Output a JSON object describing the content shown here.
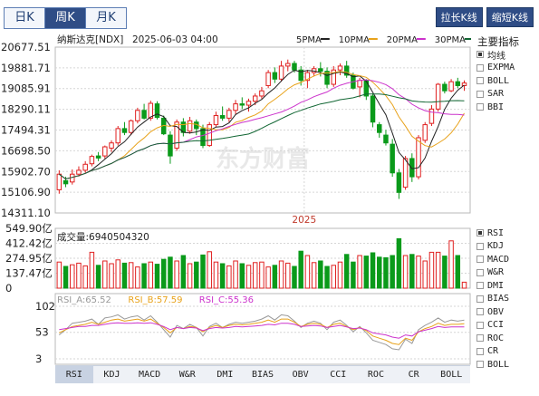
{
  "period_tabs": [
    {
      "label": "日K",
      "active": false
    },
    {
      "label": "周K",
      "active": true
    },
    {
      "label": "月K",
      "active": false
    }
  ],
  "buttons": {
    "stretch": "拉长K线",
    "shorten": "缩短K线"
  },
  "header": {
    "name": "纳斯达克[NDX]",
    "datetime": "2025-06-03 04:00"
  },
  "ma_legend": [
    {
      "label": "5PMA",
      "color": "#222222"
    },
    {
      "label": "10PMA",
      "color": "#e8a21a"
    },
    {
      "label": "20PMA",
      "color": "#cc33cc"
    },
    {
      "label": "30PMA",
      "color": "#116633"
    }
  ],
  "indicator_panel": {
    "title": "主要指标",
    "items": [
      {
        "label": "均线",
        "checked": true
      },
      {
        "label": "EXPMA",
        "checked": false
      },
      {
        "label": "BOLL",
        "checked": false
      },
      {
        "label": "SAR",
        "checked": false
      },
      {
        "label": "BBI",
        "checked": false
      }
    ]
  },
  "sub_panel": {
    "items": [
      {
        "label": "RSI",
        "checked": true
      },
      {
        "label": "KDJ",
        "checked": false
      },
      {
        "label": "MACD",
        "checked": false
      },
      {
        "label": "W&R",
        "checked": false
      },
      {
        "label": "DMI",
        "checked": false
      },
      {
        "label": "BIAS",
        "checked": false
      },
      {
        "label": "OBV",
        "checked": false
      },
      {
        "label": "CCI",
        "checked": false
      },
      {
        "label": "ROC",
        "checked": false
      },
      {
        "label": "CR",
        "checked": false
      },
      {
        "label": "BOLL",
        "checked": false
      }
    ]
  },
  "bottom_tabs": [
    "RSI",
    "KDJ",
    "MACD",
    "W&R",
    "DMI",
    "BIAS",
    "OBV",
    "CCI",
    "ROC",
    "CR",
    "BOLL"
  ],
  "bottom_tab_active": "RSI",
  "watermark": "东方财富",
  "colors": {
    "up": "#e02020",
    "down": "#0a9a1a",
    "axis": "#b8b8b8",
    "grid": "#d6d6d6"
  },
  "chart_data": {
    "type": "candlestick",
    "price_axis": {
      "ticks": [
        20677.51,
        19881.71,
        19085.91,
        18290.11,
        17494.31,
        16698.5,
        15902.7,
        15106.9,
        14311.1
      ],
      "tick_labels": [
        "20677.51",
        "19881.71",
        "19085.91",
        "18290.11",
        "17494.31",
        "16698.50",
        "15902.70",
        "15106.90",
        "14311.10"
      ],
      "range": [
        14311.1,
        20677.51
      ]
    },
    "x_label": "2025",
    "x_label_index": 38,
    "candles": [
      {
        "o": 15200,
        "h": 15950,
        "l": 15050,
        "c": 15800
      },
      {
        "o": 15550,
        "h": 15700,
        "l": 15300,
        "c": 15430
      },
      {
        "o": 15500,
        "h": 15980,
        "l": 15400,
        "c": 15800
      },
      {
        "o": 15800,
        "h": 16100,
        "l": 15700,
        "c": 15950
      },
      {
        "o": 15950,
        "h": 16300,
        "l": 15850,
        "c": 16180
      },
      {
        "o": 16200,
        "h": 16550,
        "l": 16100,
        "c": 16480
      },
      {
        "o": 16500,
        "h": 16650,
        "l": 16300,
        "c": 16420
      },
      {
        "o": 16500,
        "h": 16900,
        "l": 16400,
        "c": 16850
      },
      {
        "o": 16800,
        "h": 17100,
        "l": 16650,
        "c": 17000
      },
      {
        "o": 17000,
        "h": 17650,
        "l": 16900,
        "c": 17550
      },
      {
        "o": 17550,
        "h": 17800,
        "l": 17300,
        "c": 17400
      },
      {
        "o": 17400,
        "h": 17900,
        "l": 17300,
        "c": 17850
      },
      {
        "o": 17850,
        "h": 18350,
        "l": 17750,
        "c": 18250
      },
      {
        "o": 18250,
        "h": 18500,
        "l": 17900,
        "c": 17950
      },
      {
        "o": 17950,
        "h": 18620,
        "l": 17850,
        "c": 18520
      },
      {
        "o": 18500,
        "h": 18600,
        "l": 17900,
        "c": 17980
      },
      {
        "o": 17950,
        "h": 18050,
        "l": 17300,
        "c": 17350
      },
      {
        "o": 17300,
        "h": 17450,
        "l": 16200,
        "c": 16500
      },
      {
        "o": 16800,
        "h": 17900,
        "l": 16700,
        "c": 17800
      },
      {
        "o": 17800,
        "h": 17950,
        "l": 17250,
        "c": 17400
      },
      {
        "o": 17450,
        "h": 18000,
        "l": 17350,
        "c": 17850
      },
      {
        "o": 17800,
        "h": 17900,
        "l": 17300,
        "c": 17550
      },
      {
        "o": 17550,
        "h": 17700,
        "l": 16800,
        "c": 16900
      },
      {
        "o": 16900,
        "h": 17800,
        "l": 16850,
        "c": 17700
      },
      {
        "o": 17700,
        "h": 18200,
        "l": 17600,
        "c": 18050
      },
      {
        "o": 18050,
        "h": 18400,
        "l": 17850,
        "c": 17950
      },
      {
        "o": 17950,
        "h": 18350,
        "l": 17800,
        "c": 18250
      },
      {
        "o": 18250,
        "h": 18650,
        "l": 18100,
        "c": 18500
      },
      {
        "o": 18500,
        "h": 18750,
        "l": 18300,
        "c": 18450
      },
      {
        "o": 18450,
        "h": 18700,
        "l": 18200,
        "c": 18600
      },
      {
        "o": 18600,
        "h": 18900,
        "l": 18450,
        "c": 18800
      },
      {
        "o": 18800,
        "h": 19150,
        "l": 18700,
        "c": 19000
      },
      {
        "o": 19200,
        "h": 19800,
        "l": 19100,
        "c": 19700
      },
      {
        "o": 19700,
        "h": 19900,
        "l": 19300,
        "c": 19450
      },
      {
        "o": 19450,
        "h": 20150,
        "l": 19350,
        "c": 19950
      },
      {
        "o": 19950,
        "h": 20200,
        "l": 19750,
        "c": 20050
      },
      {
        "o": 20050,
        "h": 20150,
        "l": 19700,
        "c": 19800
      },
      {
        "o": 19800,
        "h": 19950,
        "l": 19200,
        "c": 19400
      },
      {
        "o": 19400,
        "h": 19800,
        "l": 19100,
        "c": 19700
      },
      {
        "o": 19700,
        "h": 19950,
        "l": 19550,
        "c": 19850
      },
      {
        "o": 19850,
        "h": 20100,
        "l": 19550,
        "c": 19750
      },
      {
        "o": 19750,
        "h": 19900,
        "l": 19100,
        "c": 19250
      },
      {
        "o": 19250,
        "h": 19950,
        "l": 19150,
        "c": 19800
      },
      {
        "o": 19800,
        "h": 20050,
        "l": 19600,
        "c": 19950
      },
      {
        "o": 19950,
        "h": 20150,
        "l": 19500,
        "c": 19600
      },
      {
        "o": 19600,
        "h": 19700,
        "l": 19050,
        "c": 19100
      },
      {
        "o": 19150,
        "h": 19500,
        "l": 18750,
        "c": 19400
      },
      {
        "o": 19400,
        "h": 19450,
        "l": 18650,
        "c": 18800
      },
      {
        "o": 18800,
        "h": 18900,
        "l": 17600,
        "c": 17800
      },
      {
        "o": 17700,
        "h": 17800,
        "l": 17200,
        "c": 17400
      },
      {
        "o": 17300,
        "h": 17500,
        "l": 16900,
        "c": 17000
      },
      {
        "o": 16950,
        "h": 17150,
        "l": 15700,
        "c": 15850
      },
      {
        "o": 15850,
        "h": 16000,
        "l": 14850,
        "c": 15100
      },
      {
        "o": 15300,
        "h": 16500,
        "l": 15200,
        "c": 16400
      },
      {
        "o": 16400,
        "h": 16600,
        "l": 15500,
        "c": 15700
      },
      {
        "o": 15700,
        "h": 17300,
        "l": 15600,
        "c": 17200
      },
      {
        "o": 17100,
        "h": 17800,
        "l": 17000,
        "c": 17700
      },
      {
        "o": 17750,
        "h": 18450,
        "l": 17650,
        "c": 18300
      },
      {
        "o": 18300,
        "h": 19300,
        "l": 18200,
        "c": 19250
      },
      {
        "o": 19250,
        "h": 19350,
        "l": 18900,
        "c": 19000
      },
      {
        "o": 19000,
        "h": 19450,
        "l": 18950,
        "c": 19350
      },
      {
        "o": 19350,
        "h": 19500,
        "l": 19100,
        "c": 19200
      },
      {
        "o": 19200,
        "h": 19400,
        "l": 19000,
        "c": 19300
      }
    ],
    "moving_averages": [
      {
        "name": "5PMA",
        "period": 5,
        "color": "#222222"
      },
      {
        "name": "10PMA",
        "period": 10,
        "color": "#e8a21a"
      },
      {
        "name": "20PMA",
        "period": 20,
        "color": "#cc33cc"
      },
      {
        "name": "30PMA",
        "period": 30,
        "color": "#116633"
      }
    ],
    "volume": {
      "label": "成交量:6940504320",
      "unit": "亿",
      "ticks": [
        549.9,
        412.42,
        274.95,
        137.47,
        0
      ],
      "tick_labels": [
        "549.90亿",
        "412.42亿",
        "274.95亿",
        "137.47亿",
        "0"
      ],
      "range": [
        0,
        549.9
      ],
      "values": [
        240,
        200,
        215,
        230,
        205,
        330,
        210,
        250,
        225,
        260,
        230,
        235,
        195,
        225,
        240,
        220,
        265,
        285,
        250,
        300,
        225,
        240,
        305,
        335,
        240,
        225,
        205,
        250,
        225,
        210,
        235,
        240,
        195,
        210,
        250,
        230,
        200,
        340,
        300,
        235,
        250,
        200,
        210,
        240,
        310,
        240,
        300,
        295,
        325,
        285,
        280,
        300,
        455,
        300,
        310,
        295,
        250,
        330,
        330,
        295,
        435,
        300,
        55
      ]
    },
    "rsi": {
      "legend": [
        {
          "label": "RSI_A:65.52",
          "color": "#999999"
        },
        {
          "label": "RSI_B:57.59",
          "color": "#e8a21a"
        },
        {
          "label": "RSI_C:55.36",
          "color": "#cc33cc"
        }
      ],
      "ticks": [
        102,
        53,
        3
      ],
      "range": [
        3,
        102
      ],
      "A": [
        48,
        58,
        70,
        72,
        74,
        78,
        68,
        80,
        82,
        86,
        78,
        82,
        84,
        76,
        84,
        72,
        58,
        44,
        66,
        60,
        68,
        62,
        46,
        64,
        70,
        62,
        68,
        72,
        70,
        72,
        74,
        78,
        84,
        76,
        86,
        84,
        74,
        62,
        70,
        74,
        70,
        58,
        72,
        76,
        66,
        54,
        64,
        52,
        38,
        34,
        30,
        22,
        20,
        40,
        32,
        58,
        66,
        72,
        80,
        72,
        76,
        74,
        76
      ],
      "B": [
        52,
        58,
        64,
        66,
        68,
        72,
        68,
        72,
        76,
        78,
        74,
        76,
        78,
        74,
        78,
        70,
        62,
        52,
        62,
        60,
        64,
        62,
        54,
        62,
        66,
        62,
        66,
        68,
        67,
        68,
        70,
        72,
        76,
        72,
        78,
        78,
        72,
        64,
        68,
        70,
        68,
        62,
        68,
        70,
        64,
        58,
        62,
        56,
        46,
        42,
        38,
        32,
        30,
        42,
        38,
        54,
        60,
        64,
        70,
        66,
        68,
        68,
        69
      ],
      "C": [
        58,
        60,
        62,
        64,
        64,
        66,
        66,
        68,
        70,
        71,
        70,
        70,
        71,
        70,
        71,
        68,
        64,
        58,
        62,
        60,
        62,
        61,
        56,
        60,
        62,
        61,
        62,
        64,
        63,
        64,
        65,
        66,
        68,
        67,
        70,
        70,
        68,
        64,
        65,
        66,
        65,
        62,
        64,
        66,
        63,
        60,
        61,
        58,
        52,
        50,
        48,
        44,
        42,
        48,
        46,
        54,
        57,
        60,
        64,
        62,
        63,
        63,
        63
      ]
    }
  }
}
